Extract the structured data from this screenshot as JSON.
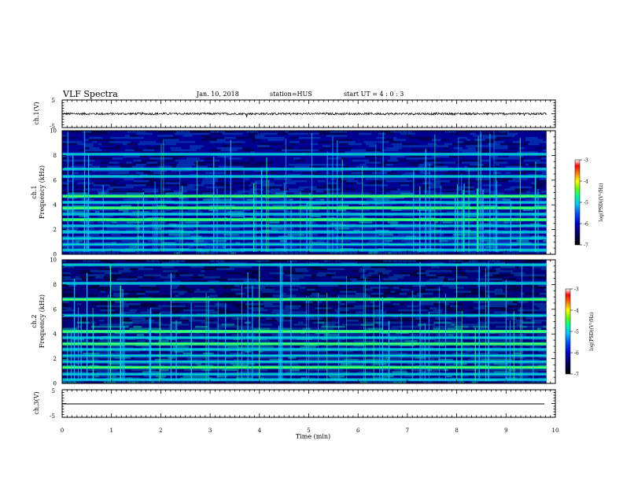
{
  "header": {
    "title": "VLF Spectra",
    "date": "Jan. 10, 2018",
    "station": "station=HUS",
    "start": "start UT =  4 : 0 : 3"
  },
  "colors": {
    "background_low": "#000010",
    "colormap": [
      "#000000",
      "#00005a",
      "#0000c8",
      "#0050ff",
      "#00c8ff",
      "#00ff90",
      "#60ff00",
      "#ffff00",
      "#ff8000",
      "#ff0000",
      "#ffffff"
    ]
  },
  "chart_data": [
    {
      "type": "line",
      "panel": "ch1-waveform",
      "ylabel": "ch.1(V)",
      "ylim": [
        -5,
        5
      ],
      "yticks": [
        "5",
        "-5"
      ],
      "xlim": [
        0,
        10
      ],
      "trace_level_V": 0,
      "description_values": {
        "noise_amplitude_V": 0.4
      }
    },
    {
      "type": "heatmap",
      "panel": "ch1-spectrogram",
      "ylabel": "ch.1\nFrequency (kHz)",
      "ylabel_lines": [
        "ch.1",
        "Frequency (kHz)"
      ],
      "ylim": [
        0,
        10
      ],
      "yticks": [
        "0",
        "2",
        "4",
        "6",
        "8",
        "10"
      ],
      "xlim": [
        0,
        10
      ],
      "data_end_min": 9.82,
      "bands_kHz": [
        0.35,
        0.8,
        1.3,
        1.8,
        2.3,
        2.8,
        3.25,
        3.75,
        4.2,
        4.7,
        6.3,
        6.9,
        8.1
      ],
      "strong_bands_kHz": [
        4.7,
        3.75,
        2.8
      ],
      "colorbar": {
        "label": "log(PSD)(V²/Hz)",
        "ticks": [
          "-3",
          "-4",
          "-5",
          "-6",
          "-7"
        ],
        "range": [
          -7,
          -3
        ]
      }
    },
    {
      "type": "heatmap",
      "panel": "ch2-spectrogram",
      "ylabel": "ch.2\nFrequency (kHz)",
      "ylabel_lines": [
        "ch.2",
        "Frequency (kHz)"
      ],
      "ylim": [
        0,
        10
      ],
      "yticks": [
        "0",
        "2",
        "4",
        "6",
        "8",
        "10"
      ],
      "xlim": [
        0,
        10
      ],
      "data_end_min": 9.82,
      "bands_kHz": [
        0.3,
        0.75,
        1.3,
        1.75,
        2.25,
        2.75,
        3.2,
        3.7,
        4.2,
        5.5,
        6.8,
        8.1,
        9.6
      ],
      "strong_bands_kHz": [
        4.2,
        6.8,
        3.2,
        1.3
      ],
      "colorbar": {
        "label": "log(PSD)(V²/Hz)",
        "ticks": [
          "-3",
          "-4",
          "-5",
          "-6",
          "-7"
        ],
        "range": [
          -7,
          -3
        ]
      }
    },
    {
      "type": "line",
      "panel": "ch3-waveform",
      "ylabel": "ch.3(V)",
      "ylim": [
        -5,
        5
      ],
      "yticks": [
        "5",
        "-5"
      ],
      "xlim": [
        0,
        10
      ],
      "trace_level_V": 0
    }
  ],
  "xaxis": {
    "label": "Time (min)",
    "ticks": [
      "0",
      "1",
      "2",
      "3",
      "4",
      "5",
      "6",
      "7",
      "8",
      "9",
      "10"
    ],
    "range": [
      0,
      10
    ]
  }
}
